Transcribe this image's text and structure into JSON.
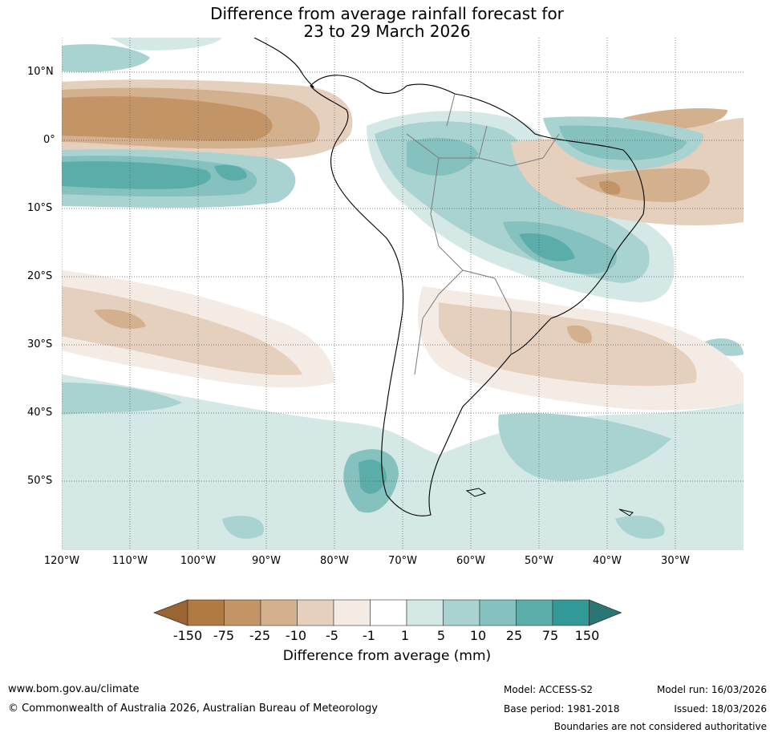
{
  "title": {
    "line1": "Difference from average rainfall forecast for",
    "line2": "23 to 29 March 2026"
  },
  "axes": {
    "lat_labels": [
      "10°N",
      "0°",
      "10°S",
      "20°S",
      "30°S",
      "40°S",
      "50°S"
    ],
    "lon_labels": [
      "120°W",
      "110°W",
      "100°W",
      "90°W",
      "80°W",
      "70°W",
      "60°W",
      "50°W",
      "40°W",
      "30°W"
    ]
  },
  "colorbar": {
    "labels": [
      "-150",
      "-75",
      "-25",
      "-10",
      "-5",
      "-1",
      "1",
      "5",
      "10",
      "25",
      "75",
      "150"
    ],
    "colors": [
      "#9c6432",
      "#b07a42",
      "#c29466",
      "#d3b08e",
      "#e5cfbd",
      "#f4ebe4",
      "#ffffff",
      "#d4e8e6",
      "#a9d3d1",
      "#85c1be",
      "#5bada9",
      "#329a96",
      "#2a7674"
    ],
    "title": "Difference from average (mm)"
  },
  "footer": {
    "url": "www.bom.gov.au/climate",
    "copyright": "© Commonwealth of Australia 2026, Australian Bureau of Meteorology",
    "model": "Model: ACCESS-S2",
    "base_period": "Base period: 1981-2018",
    "model_run": "Model run: 16/03/2026",
    "issued": "Issued: 18/03/2026",
    "disclaimer": "Boundaries are not considered authoritative"
  }
}
